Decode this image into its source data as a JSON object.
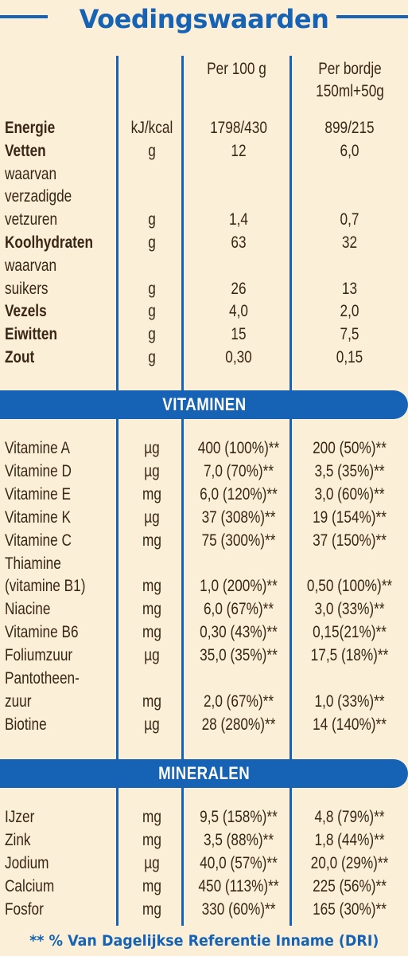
{
  "title": "Voedingswaarden",
  "header": {
    "col1": "Per 100 g",
    "col2_line1": "Per bordje",
    "col2_line2": "150ml+50g"
  },
  "nutrients": [
    {
      "name": "Energie",
      "unit": "kJ/kcal",
      "per100": "1798/430",
      "serving": "899/215",
      "bold": true
    },
    {
      "name": "Vetten",
      "unit": "g",
      "per100": "12",
      "serving": "6,0",
      "bold": true
    },
    {
      "name": "waarvan",
      "unit": "",
      "per100": "",
      "serving": "",
      "bold": false
    },
    {
      "name": "verzadigde",
      "unit": "",
      "per100": "",
      "serving": "",
      "bold": false
    },
    {
      "name": "vetzuren",
      "unit": "g",
      "per100": "1,4",
      "serving": "0,7",
      "bold": false
    },
    {
      "name": "Koolhydraten",
      "unit": "g",
      "per100": "63",
      "serving": "32",
      "bold": true
    },
    {
      "name": "waarvan",
      "unit": "",
      "per100": "",
      "serving": "",
      "bold": false
    },
    {
      "name": "suikers",
      "unit": "g",
      "per100": "26",
      "serving": "13",
      "bold": false
    },
    {
      "name": "Vezels",
      "unit": "g",
      "per100": "4,0",
      "serving": "2,0",
      "bold": true
    },
    {
      "name": "Eiwitten",
      "unit": "g",
      "per100": "15",
      "serving": "7,5",
      "bold": true
    },
    {
      "name": "Zout",
      "unit": "g",
      "per100": "0,30",
      "serving": "0,15",
      "bold": true
    }
  ],
  "vitamins_heading": "VITAMINEN",
  "vitamins": [
    {
      "name": "Vitamine A",
      "unit": "µg",
      "per100": "400 (100%)**",
      "serving": "200 (50%)**"
    },
    {
      "name": "Vitamine D",
      "unit": "µg",
      "per100": "7,0 (70%)**",
      "serving": "3,5 (35%)**"
    },
    {
      "name": "Vitamine E",
      "unit": "mg",
      "per100": "6,0 (120%)**",
      "serving": "3,0 (60%)**"
    },
    {
      "name": "Vitamine K",
      "unit": "µg",
      "per100": "37 (308%)**",
      "serving": "19 (154%)**"
    },
    {
      "name": "Vitamine C",
      "unit": "mg",
      "per100": "75 (300%)**",
      "serving": "37 (150%)**"
    },
    {
      "name": "Thiamine",
      "unit": "",
      "per100": "",
      "serving": ""
    },
    {
      "name": "(vitamine B1)",
      "unit": "mg",
      "per100": "1,0 (200%)**",
      "serving": "0,50 (100%)**"
    },
    {
      "name": "Niacine",
      "unit": "mg",
      "per100": "6,0 (67%)**",
      "serving": "3,0 (33%)**"
    },
    {
      "name": "Vitamine B6",
      "unit": "mg",
      "per100": "0,30 (43%)**",
      "serving": "0,15(21%)**"
    },
    {
      "name": "Foliumzuur",
      "unit": "µg",
      "per100": "35,0 (35%)**",
      "serving": "17,5 (18%)**"
    },
    {
      "name": "Pantotheen-",
      "unit": "",
      "per100": "",
      "serving": ""
    },
    {
      "name": "zuur",
      "unit": "mg",
      "per100": "2,0 (67%)**",
      "serving": "1,0 (33%)**"
    },
    {
      "name": "Biotine",
      "unit": "µg",
      "per100": "28 (280%)**",
      "serving": "14 (140%)**"
    }
  ],
  "minerals_heading": "MINERALEN",
  "minerals": [
    {
      "name": "IJzer",
      "unit": "mg",
      "per100": "9,5 (158%)**",
      "serving": "4,8 (79%)**"
    },
    {
      "name": "Zink",
      "unit": "mg",
      "per100": "3,5 (88%)**",
      "serving": "1,8 (44%)**"
    },
    {
      "name": "Jodium",
      "unit": "µg",
      "per100": "40,0 (57%)**",
      "serving": "20,0 (29%)**"
    },
    {
      "name": "Calcium",
      "unit": "mg",
      "per100": "450 (113%)**",
      "serving": "225 (56%)**"
    },
    {
      "name": "Fosfor",
      "unit": "mg",
      "per100": "330 (60%)**",
      "serving": "165 (30%)**"
    }
  ],
  "footer": "** % Van Dagelijkse Referentie Inname (DRI)",
  "colors": {
    "accent": "#1662b5",
    "background": "#fbf0d7",
    "text": "#3a2516"
  }
}
